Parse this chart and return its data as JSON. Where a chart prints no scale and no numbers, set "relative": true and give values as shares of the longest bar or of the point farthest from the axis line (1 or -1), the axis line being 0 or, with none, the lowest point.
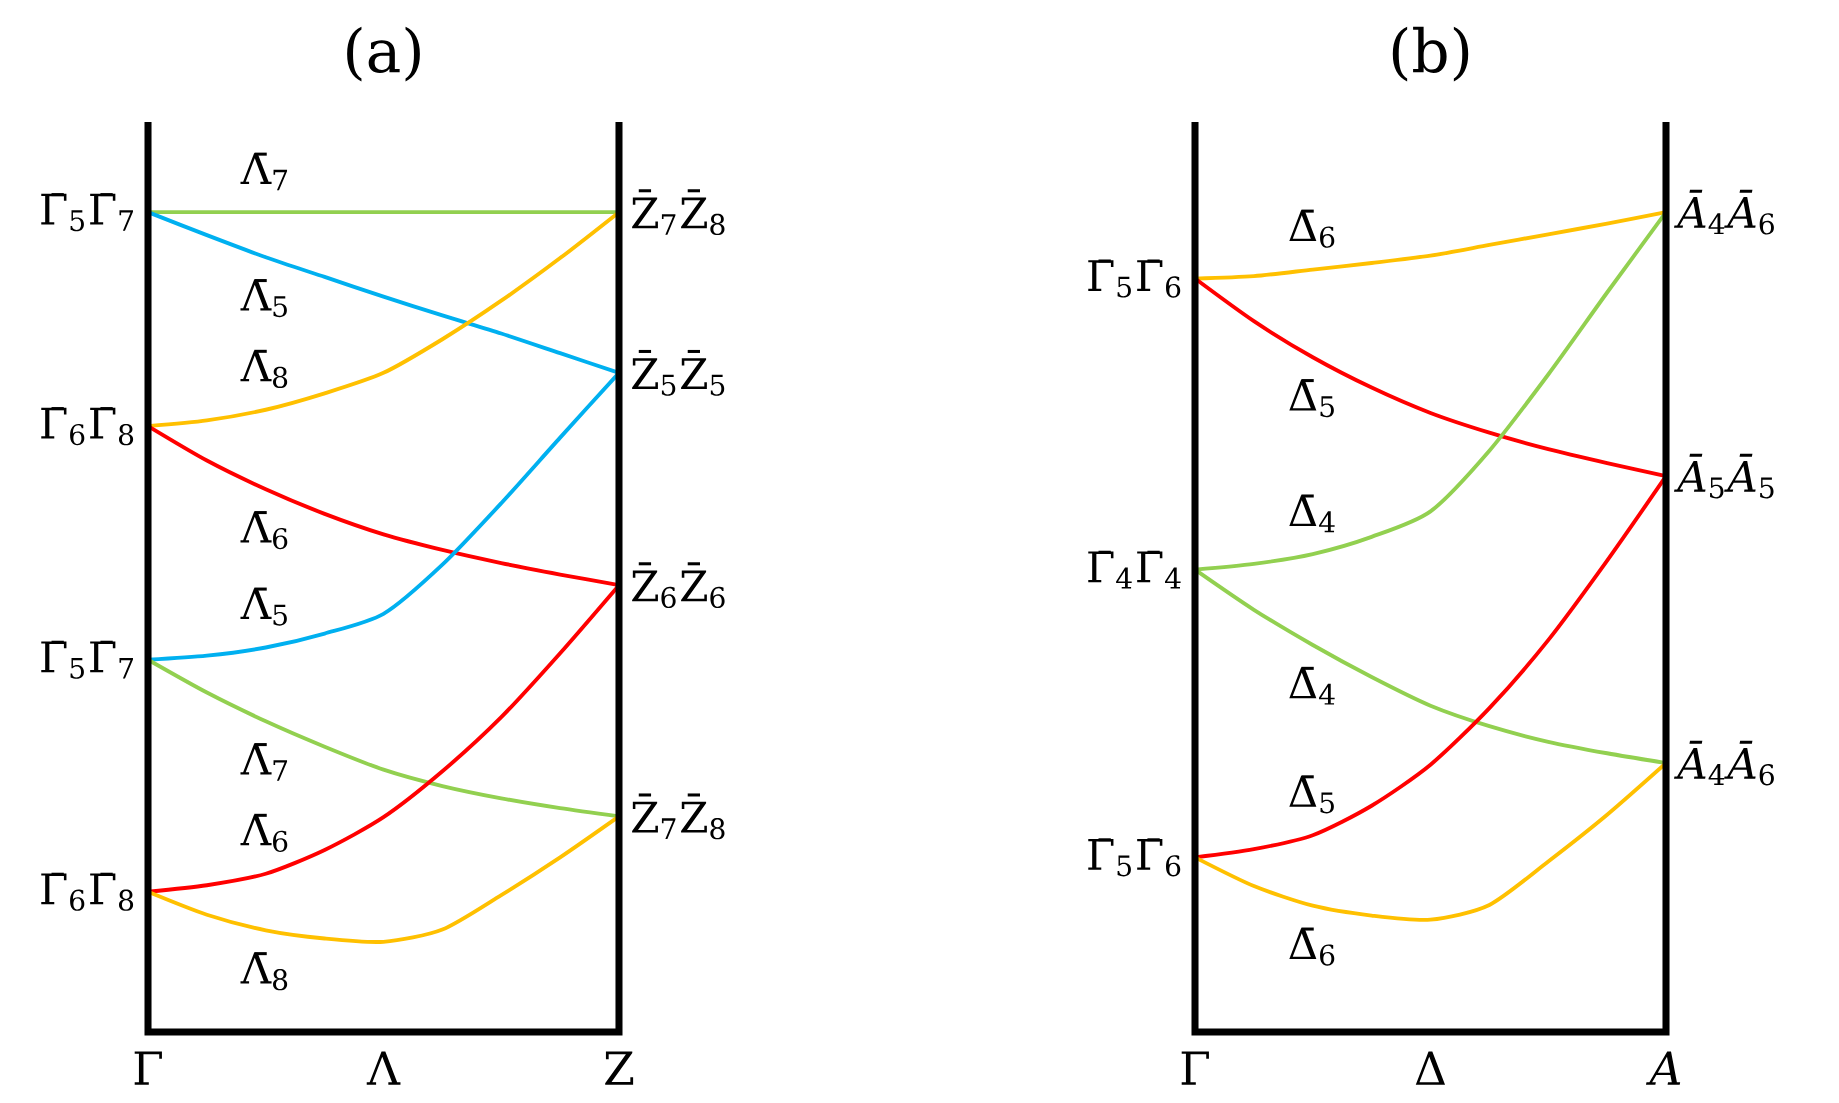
{
  "chart_data": [
    {
      "type": "line",
      "title": "(a)",
      "relative": true,
      "tick_labels": "x",
      "categories": [
        "Γ",
        null,
        null,
        null,
        "Λ",
        null,
        null,
        null,
        "Z"
      ],
      "series": [
        {
          "name": "Λ̄$_{7}$",
          "color": "#92d050",
          "values": [
            1,
            1,
            1,
            1,
            1,
            1,
            1,
            1,
            1
          ]
        },
        {
          "name": "Λ̄$_{5}$",
          "color": "#00b0f0",
          "values": [
            1,
            0.972,
            0.945,
            0.921,
            0.897,
            0.874,
            0.852,
            0.828,
            0.804
          ]
        },
        {
          "name": "Λ̄$_{8}$",
          "color": "#ffc000",
          "values": [
            0.739,
            0.746,
            0.759,
            0.779,
            0.804,
            0.845,
            0.892,
            0.944,
            1
          ]
        },
        {
          "name": "Λ̄$_{6}$",
          "color": "#ff0000",
          "values": [
            0.739,
            0.697,
            0.662,
            0.632,
            0.607,
            0.588,
            0.572,
            0.558,
            0.545
          ]
        },
        {
          "name": "Λ̄$_{5}$",
          "color": "#00b0f0",
          "values": [
            0.454,
            0.459,
            0.469,
            0.486,
            0.51,
            0.57,
            0.645,
            0.725,
            0.804
          ]
        },
        {
          "name": "Λ̄$_{7}$",
          "color": "#92d050",
          "values": [
            0.454,
            0.414,
            0.379,
            0.348,
            0.32,
            0.3,
            0.285,
            0.273,
            0.263
          ]
        },
        {
          "name": "Λ̄$_{6}$",
          "color": "#ff0000",
          "values": [
            0.171,
            0.179,
            0.193,
            0.222,
            0.262,
            0.318,
            0.384,
            0.462,
            0.545
          ]
        },
        {
          "name": "Λ̄$_{8}$",
          "color": "#ffc000",
          "values": [
            0.171,
            0.143,
            0.124,
            0.114,
            0.11,
            0.125,
            0.167,
            0.213,
            0.263
          ]
        }
      ],
      "annotations": [
        {
          "text": "Γ̄$_{5}$Γ̄$_{7}$",
          "x": "Γ",
          "y": 1
        },
        {
          "text": "Γ̄$_{6}$Γ̄$_{8}$",
          "x": "Γ",
          "y": 0.739
        },
        {
          "text": "Γ̄$_{5}$Γ̄$_{7}$",
          "x": "Γ",
          "y": 0.454
        },
        {
          "text": "Γ̄$_{6}$Γ̄$_{8}$",
          "x": "Γ",
          "y": 0.171
        },
        {
          "text": "Z̄$_{7}$Z̄$_{8}$",
          "x": "Z",
          "y": 1
        },
        {
          "text": "Z̄$_{5}$Z̄$_{5}$",
          "x": "Z",
          "y": 0.804
        },
        {
          "text": "Z̄$_{6}$Z̄$_{6}$",
          "x": "Z",
          "y": 0.545
        },
        {
          "text": "Z̄$_{7}$Z̄$_{8}$",
          "x": "Z",
          "y": 0.263
        }
      ]
    },
    {
      "type": "line",
      "title": "(b)",
      "relative": true,
      "tick_labels": "x",
      "categories": [
        "Γ",
        null,
        null,
        null,
        "Δ",
        null,
        null,
        null,
        "*A*"
      ],
      "series": [
        {
          "name": "Δ̄$_{6}$",
          "color": "#ffc000",
          "values": [
            0.919,
            0.922,
            0.93,
            0.938,
            0.947,
            0.96,
            0.973,
            0.986,
            1
          ]
        },
        {
          "name": "Δ̄$_{5}$",
          "color": "#ff0000",
          "values": [
            0.919,
            0.867,
            0.823,
            0.786,
            0.755,
            0.731,
            0.711,
            0.694,
            0.678
          ]
        },
        {
          "name": "Δ̄$_{4}$",
          "color": "#92d050",
          "values": [
            0.564,
            0.571,
            0.583,
            0.604,
            0.635,
            0.709,
            0.802,
            0.902,
            1
          ]
        },
        {
          "name": "Δ̄$_{4}$",
          "color": "#92d050",
          "values": [
            0.564,
            0.515,
            0.472,
            0.433,
            0.398,
            0.373,
            0.354,
            0.34,
            0.328
          ]
        },
        {
          "name": "Δ̄$_{5}$",
          "color": "#ff0000",
          "values": [
            0.213,
            0.223,
            0.24,
            0.276,
            0.326,
            0.395,
            0.478,
            0.575,
            0.678
          ]
        },
        {
          "name": "Δ̄$_{6}$",
          "color": "#ffc000",
          "values": [
            0.213,
            0.178,
            0.154,
            0.142,
            0.137,
            0.155,
            0.208,
            0.265,
            0.328
          ]
        }
      ],
      "annotations": [
        {
          "text": "Γ̄$_{5}$Γ̄$_{6}$",
          "x": "Γ",
          "y": 0.919
        },
        {
          "text": "Γ̄$_{4}$Γ̄$_{4}$",
          "x": "Γ",
          "y": 0.564
        },
        {
          "text": "Γ̄$_{5}$Γ̄$_{6}$",
          "x": "Γ",
          "y": 0.213
        },
        {
          "text": "*Ā*$_{4}$*Ā*$_{6}$",
          "x": "*A*",
          "y": 1
        },
        {
          "text": "*Ā*$_{5}$*Ā*$_{5}$",
          "x": "*A*",
          "y": 0.678
        },
        {
          "text": "*Ā*$_{4}$*Ā*$_{6}$",
          "x": "*A*",
          "y": 0.328
        }
      ]
    }
  ]
}
